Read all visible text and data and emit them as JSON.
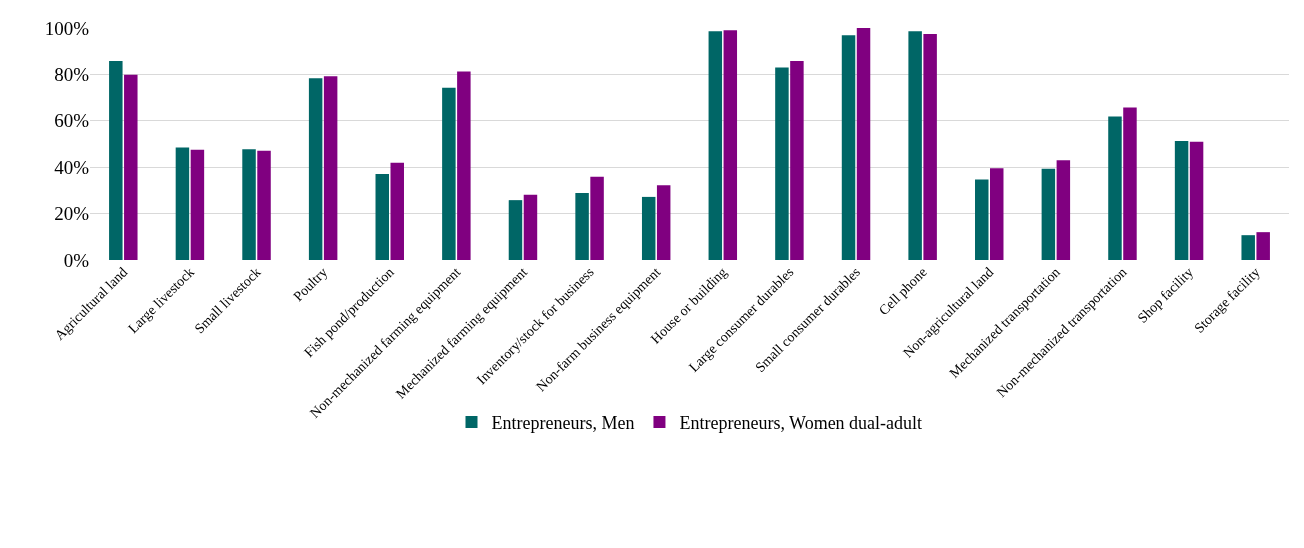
{
  "chart_data": {
    "type": "bar",
    "categories": [
      "Agricultural land",
      "Large livestock",
      "Small livestock",
      "Poultry",
      "Fish pond/production",
      "Non-mechanized farming equipment",
      "Mechanized farming equipment",
      "Inventory/stock for business",
      "Non-farm business equipment",
      "House or building",
      "Large consumer durables",
      "Small consumer durables",
      "Cell phone",
      "Non-agricultural land",
      "Mechanized transportation",
      "Non-mechanized transportation",
      "Shop facility",
      "Storage facility"
    ],
    "series": [
      {
        "name": "Entrepreneurs, Men",
        "color": "#006666",
        "values": [
          85.8,
          48.5,
          47.7,
          78.3,
          37.1,
          74.2,
          25.8,
          28.9,
          27.2,
          98.6,
          83.0,
          96.9,
          98.6,
          34.7,
          39.3,
          61.9,
          51.3,
          10.7
        ]
      },
      {
        "name": "Entrepreneurs, Women dual-adult",
        "color": "#800080",
        "values": [
          79.9,
          47.5,
          47.1,
          79.2,
          41.9,
          81.3,
          28.1,
          35.9,
          32.2,
          99.0,
          85.8,
          100,
          97.4,
          39.5,
          43.0,
          65.7,
          51.0,
          12.0
        ]
      }
    ],
    "ylim": [
      0,
      100
    ],
    "yticks": [
      {
        "value": 0,
        "label": "0%"
      },
      {
        "value": 20,
        "label": "20%"
      },
      {
        "value": 40,
        "label": "40%"
      },
      {
        "value": 60,
        "label": "60%"
      },
      {
        "value": 80,
        "label": "80%"
      },
      {
        "value": 100,
        "label": "100%"
      }
    ],
    "grid": "y",
    "legend": "bottom"
  }
}
